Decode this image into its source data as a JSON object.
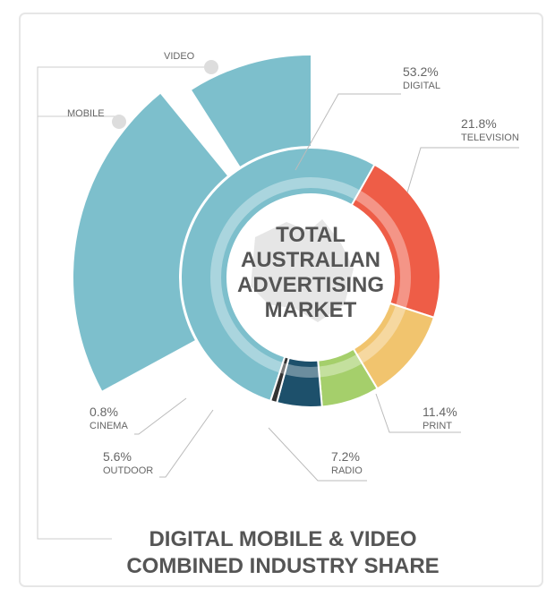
{
  "chart_data": {
    "type": "donut",
    "center_label": [
      "TOTAL",
      "AUSTRALIAN",
      "ADVERTISING",
      "MARKET"
    ],
    "footer": [
      "DIGITAL MOBILE & VIDEO",
      "COMBINED INDUSTRY SHARE"
    ],
    "categories": [
      "DIGITAL",
      "TELEVISION",
      "PRINT",
      "RADIO",
      "OUTDOOR",
      "CINEMA"
    ],
    "values": [
      53.2,
      21.8,
      11.4,
      7.2,
      5.6,
      0.8
    ],
    "value_labels": [
      "53.2%",
      "21.8%",
      "11.4%",
      "7.2%",
      "5.6%",
      "0.8%"
    ],
    "colors": [
      "#7dbfcc",
      "#ee5d47",
      "#f1c46e",
      "#a5cf6b",
      "#1d506b",
      "#333333"
    ],
    "outer_series": {
      "categories": [
        "MOBILE",
        "VIDEO"
      ],
      "values": [
        22,
        9
      ],
      "color": "#7dbfcc"
    }
  }
}
